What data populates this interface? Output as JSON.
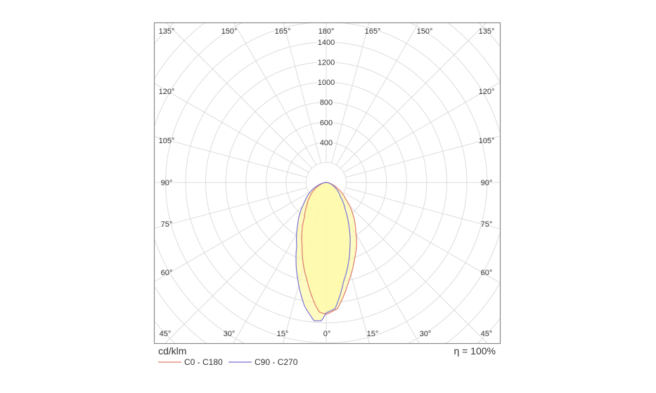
{
  "chart_data": {
    "type": "polar",
    "title": "",
    "unit_label": "cd/klm",
    "efficiency_label": "η = 100%",
    "radial_range": [
      0,
      1400
    ],
    "radial_ticks": [
      400,
      600,
      800,
      1000,
      1200,
      1400
    ],
    "radial_grid_step": 200,
    "angle_step_deg": 15,
    "angle_labels_top": [
      "135°",
      "150°",
      "165°",
      "180°",
      "165°",
      "150°",
      "135°"
    ],
    "angle_labels_side": [
      "120°",
      "105°",
      "90°",
      "75°",
      "60°"
    ],
    "angle_labels_bottom": [
      "45°",
      "30°",
      "15°",
      "0°",
      "15°",
      "30°",
      "45°"
    ],
    "grid": true,
    "legend_position": "bottom-left",
    "fill_color": "#fdf9a8",
    "series": [
      {
        "name": "C0 - C180",
        "color": "#e07a6e",
        "angles": [
          -90,
          -80,
          -70,
          -60,
          -50,
          -40,
          -32,
          -21,
          -11,
          -5,
          -3,
          0,
          5,
          13,
          20,
          27,
          31,
          40,
          45,
          50,
          60,
          70,
          80,
          90
        ],
        "values": [
          0,
          20,
          60,
          130,
          210,
          300,
          411,
          672,
          997,
          1230,
          1295,
          1315,
          1265,
          1005,
          820,
          667,
          570,
          412,
          330,
          250,
          150,
          70,
          25,
          0
        ]
      },
      {
        "name": "C90 - C270",
        "color": "#7a72d8",
        "angles": [
          -90,
          -80,
          -70,
          -60,
          -50,
          -45,
          -34,
          -25,
          -16,
          -10,
          -5,
          -2,
          0,
          4,
          10,
          20,
          28,
          35,
          45,
          60,
          75,
          90
        ],
        "values": [
          0,
          30,
          90,
          180,
          270,
          330,
          508,
          695,
          1020,
          1250,
          1385,
          1380,
          1300,
          1262,
          1000,
          690,
          475,
          330,
          200,
          100,
          35,
          0
        ]
      }
    ]
  }
}
